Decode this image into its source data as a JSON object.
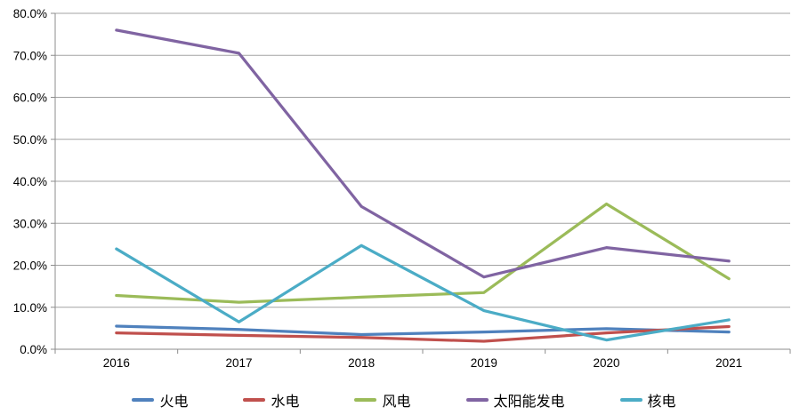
{
  "chart_data": {
    "type": "line",
    "categories": [
      "2016",
      "2017",
      "2018",
      "2019",
      "2020",
      "2021"
    ],
    "series": [
      {
        "name": "火电",
        "color": "#4F81BD",
        "values": [
          5.5,
          4.7,
          3.5,
          4.1,
          4.9,
          4.1
        ]
      },
      {
        "name": "水电",
        "color": "#C0504D",
        "values": [
          3.9,
          3.3,
          2.8,
          1.9,
          3.9,
          5.4
        ]
      },
      {
        "name": "风电",
        "color": "#9BBB59",
        "values": [
          12.8,
          11.2,
          12.4,
          13.5,
          34.6,
          16.8
        ]
      },
      {
        "name": "太阳能发电",
        "color": "#8064A2",
        "values": [
          76.0,
          70.5,
          34.0,
          17.2,
          24.2,
          21.0
        ]
      },
      {
        "name": "核电",
        "color": "#4BACC6",
        "values": [
          23.9,
          6.5,
          24.7,
          9.2,
          2.2,
          7.0
        ]
      }
    ],
    "y_axis": {
      "min": 0,
      "max": 80,
      "step": 10,
      "tick_labels": [
        "0.0%",
        "10.0%",
        "20.0%",
        "30.0%",
        "40.0%",
        "50.0%",
        "60.0%",
        "70.0%",
        "80.0%"
      ]
    },
    "x_axis": {
      "tick_labels": [
        "2016",
        "2017",
        "2018",
        "2019",
        "2020",
        "2021"
      ]
    },
    "legend_position": "bottom",
    "grid": true,
    "colors": {
      "gridline": "#A3A3A3",
      "axis": "#8C8C8C",
      "text": "#000000",
      "background": "#FFFFFF"
    }
  }
}
